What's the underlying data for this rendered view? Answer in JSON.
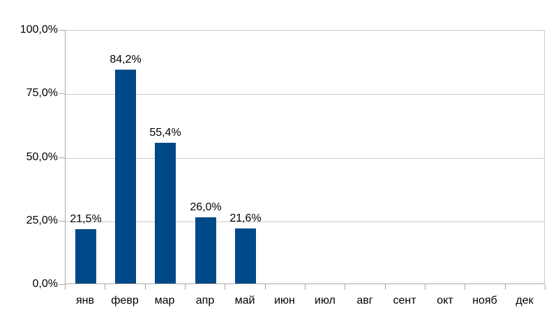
{
  "chart_data": {
    "type": "bar",
    "title": "",
    "xlabel": "",
    "ylabel": "",
    "categories": [
      "янв",
      "февр",
      "мар",
      "апр",
      "май",
      "июн",
      "июл",
      "авг",
      "сент",
      "окт",
      "нояб",
      "дек"
    ],
    "values": [
      21.5,
      84.2,
      55.4,
      26.0,
      21.6,
      null,
      null,
      null,
      null,
      null,
      null,
      null
    ],
    "data_labels": [
      "21,5%",
      "84,2%",
      "55,4%",
      "26,0%",
      "21,6%",
      "",
      "",
      "",
      "",
      "",
      "",
      ""
    ],
    "y_ticks": [
      {
        "value": 100,
        "label": "100,0%"
      },
      {
        "value": 75,
        "label": "75,0%"
      },
      {
        "value": 50,
        "label": "50,0%"
      },
      {
        "value": 25,
        "label": "25,0%"
      },
      {
        "value": 0,
        "label": "0,0%"
      }
    ],
    "ylim": [
      0,
      100
    ],
    "grid": "horizontal",
    "legend": "none",
    "colors": {
      "bar": "#004988",
      "grid": "#c9c9c9",
      "axis": "#a9a9a9",
      "text": "#000000",
      "background": "#ffffff"
    }
  }
}
